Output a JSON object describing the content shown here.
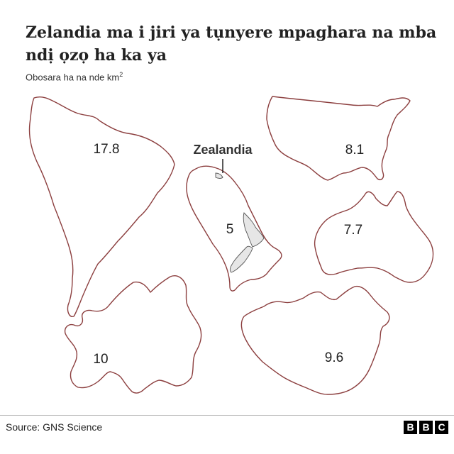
{
  "chart_data": {
    "type": "table",
    "title": "Zelandia ma i jiri ya tụnyere mpaghara na mba ndị ọzọ ha ka ya",
    "subtitle_prefix": "Obosara ha na nde km",
    "subtitle_sup": "2",
    "highlight_label": "Zealandia",
    "regions": [
      {
        "shape": "south-america",
        "value": "17.8"
      },
      {
        "shape": "usa",
        "value": "8.1"
      },
      {
        "shape": "zealandia",
        "value": "5"
      },
      {
        "shape": "australia",
        "value": "7.7"
      },
      {
        "shape": "europe",
        "value": "10"
      },
      {
        "shape": "china",
        "value": "9.6"
      }
    ]
  },
  "footer": {
    "source": "Source: GNS Science",
    "logo_letters": [
      "B",
      "B",
      "C"
    ]
  },
  "colors": {
    "outline": "#8c3f3f",
    "nz_fill": "#e6e6e6",
    "text": "#222222"
  }
}
